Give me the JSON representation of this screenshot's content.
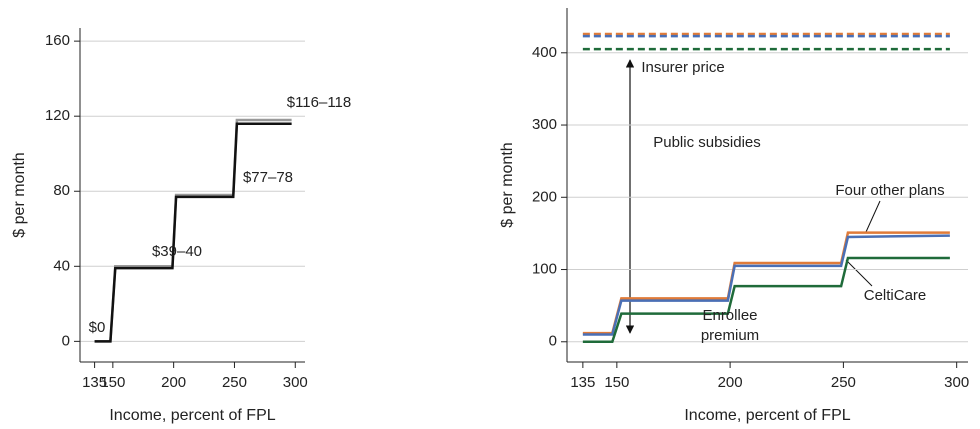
{
  "chart_data": [
    {
      "type": "line",
      "ylabel": "$ per month",
      "xlabel": "Income, percent of FPL",
      "xlim": [
        123,
        308
      ],
      "ylim": [
        -11,
        167
      ],
      "xticks": [
        135,
        150,
        200,
        250,
        300
      ],
      "yticks": [
        0,
        40,
        80,
        120,
        160
      ],
      "grid": true,
      "x": [
        135,
        148,
        152,
        199,
        202,
        249,
        252,
        297
      ],
      "series": [
        {
          "color": "#999999",
          "values": [
            0,
            0,
            40,
            40,
            78,
            78,
            118,
            118
          ]
        },
        {
          "color": "#111111",
          "values": [
            0,
            0,
            39,
            39,
            77,
            77,
            116,
            116
          ]
        }
      ],
      "annotations": [
        "$0",
        "$39–40",
        "$77–78",
        "$116–118"
      ]
    },
    {
      "type": "line",
      "ylabel": "$ per month",
      "xlabel": "Income, percent of FPL",
      "xlim": [
        128,
        305
      ],
      "ylim": [
        -28,
        462
      ],
      "xticks": [
        135,
        150,
        200,
        250,
        300
      ],
      "yticks": [
        0,
        100,
        200,
        300,
        400
      ],
      "grid": true,
      "x": [
        135,
        148,
        152,
        199,
        202,
        249,
        252,
        297
      ],
      "series": [
        {
          "color": "#e07b39",
          "values": [
            12,
            12,
            60,
            60,
            109,
            109,
            151,
            151
          ]
        },
        {
          "color": "#4a6fb5",
          "values": [
            10,
            10,
            57,
            57,
            105,
            105,
            145,
            147
          ]
        },
        {
          "color": "#1f6b3a",
          "values": [
            0,
            0,
            39,
            39,
            77,
            77,
            116,
            116
          ]
        }
      ],
      "price_x": [
        135,
        297
      ],
      "prices": [
        {
          "color": "#e07b39",
          "dashed": true,
          "values": [
            426,
            426
          ]
        },
        {
          "color": "#4a6fb5",
          "dashed": true,
          "values": [
            423,
            423
          ]
        },
        {
          "color": "#1f6b3a",
          "dashed": true,
          "values": [
            405,
            405
          ]
        }
      ],
      "annotations": [
        "Insurer price",
        "Public subsidies",
        "Four other plans",
        "CeltiCare",
        "Enrollee",
        "premium"
      ]
    }
  ]
}
